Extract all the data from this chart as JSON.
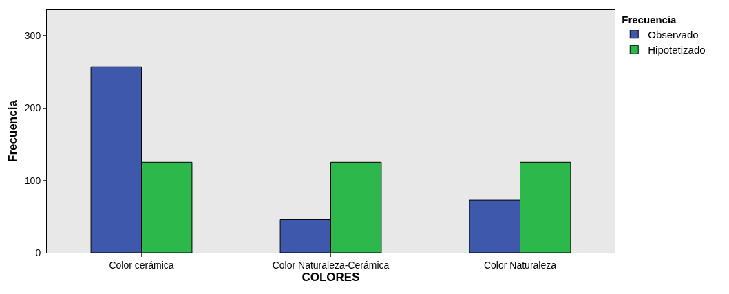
{
  "chart_data": {
    "type": "bar",
    "xlabel": "COLORES",
    "ylabel": "Frecuencia",
    "legend_title": "Frecuencia",
    "categories": [
      "Color cerámica",
      "Color Naturaleza-Cerámica",
      "Color Naturaleza"
    ],
    "series": [
      {
        "name": "Observado",
        "color": "#3e58ac",
        "values": [
          257,
          46,
          73
        ]
      },
      {
        "name": "Hipotetizado",
        "color": "#2db84b",
        "values": [
          125,
          125,
          125
        ]
      }
    ],
    "ylim": [
      0,
      336
    ],
    "yticks": [
      0,
      100,
      200,
      300
    ],
    "grid": false,
    "legend": "top right"
  }
}
